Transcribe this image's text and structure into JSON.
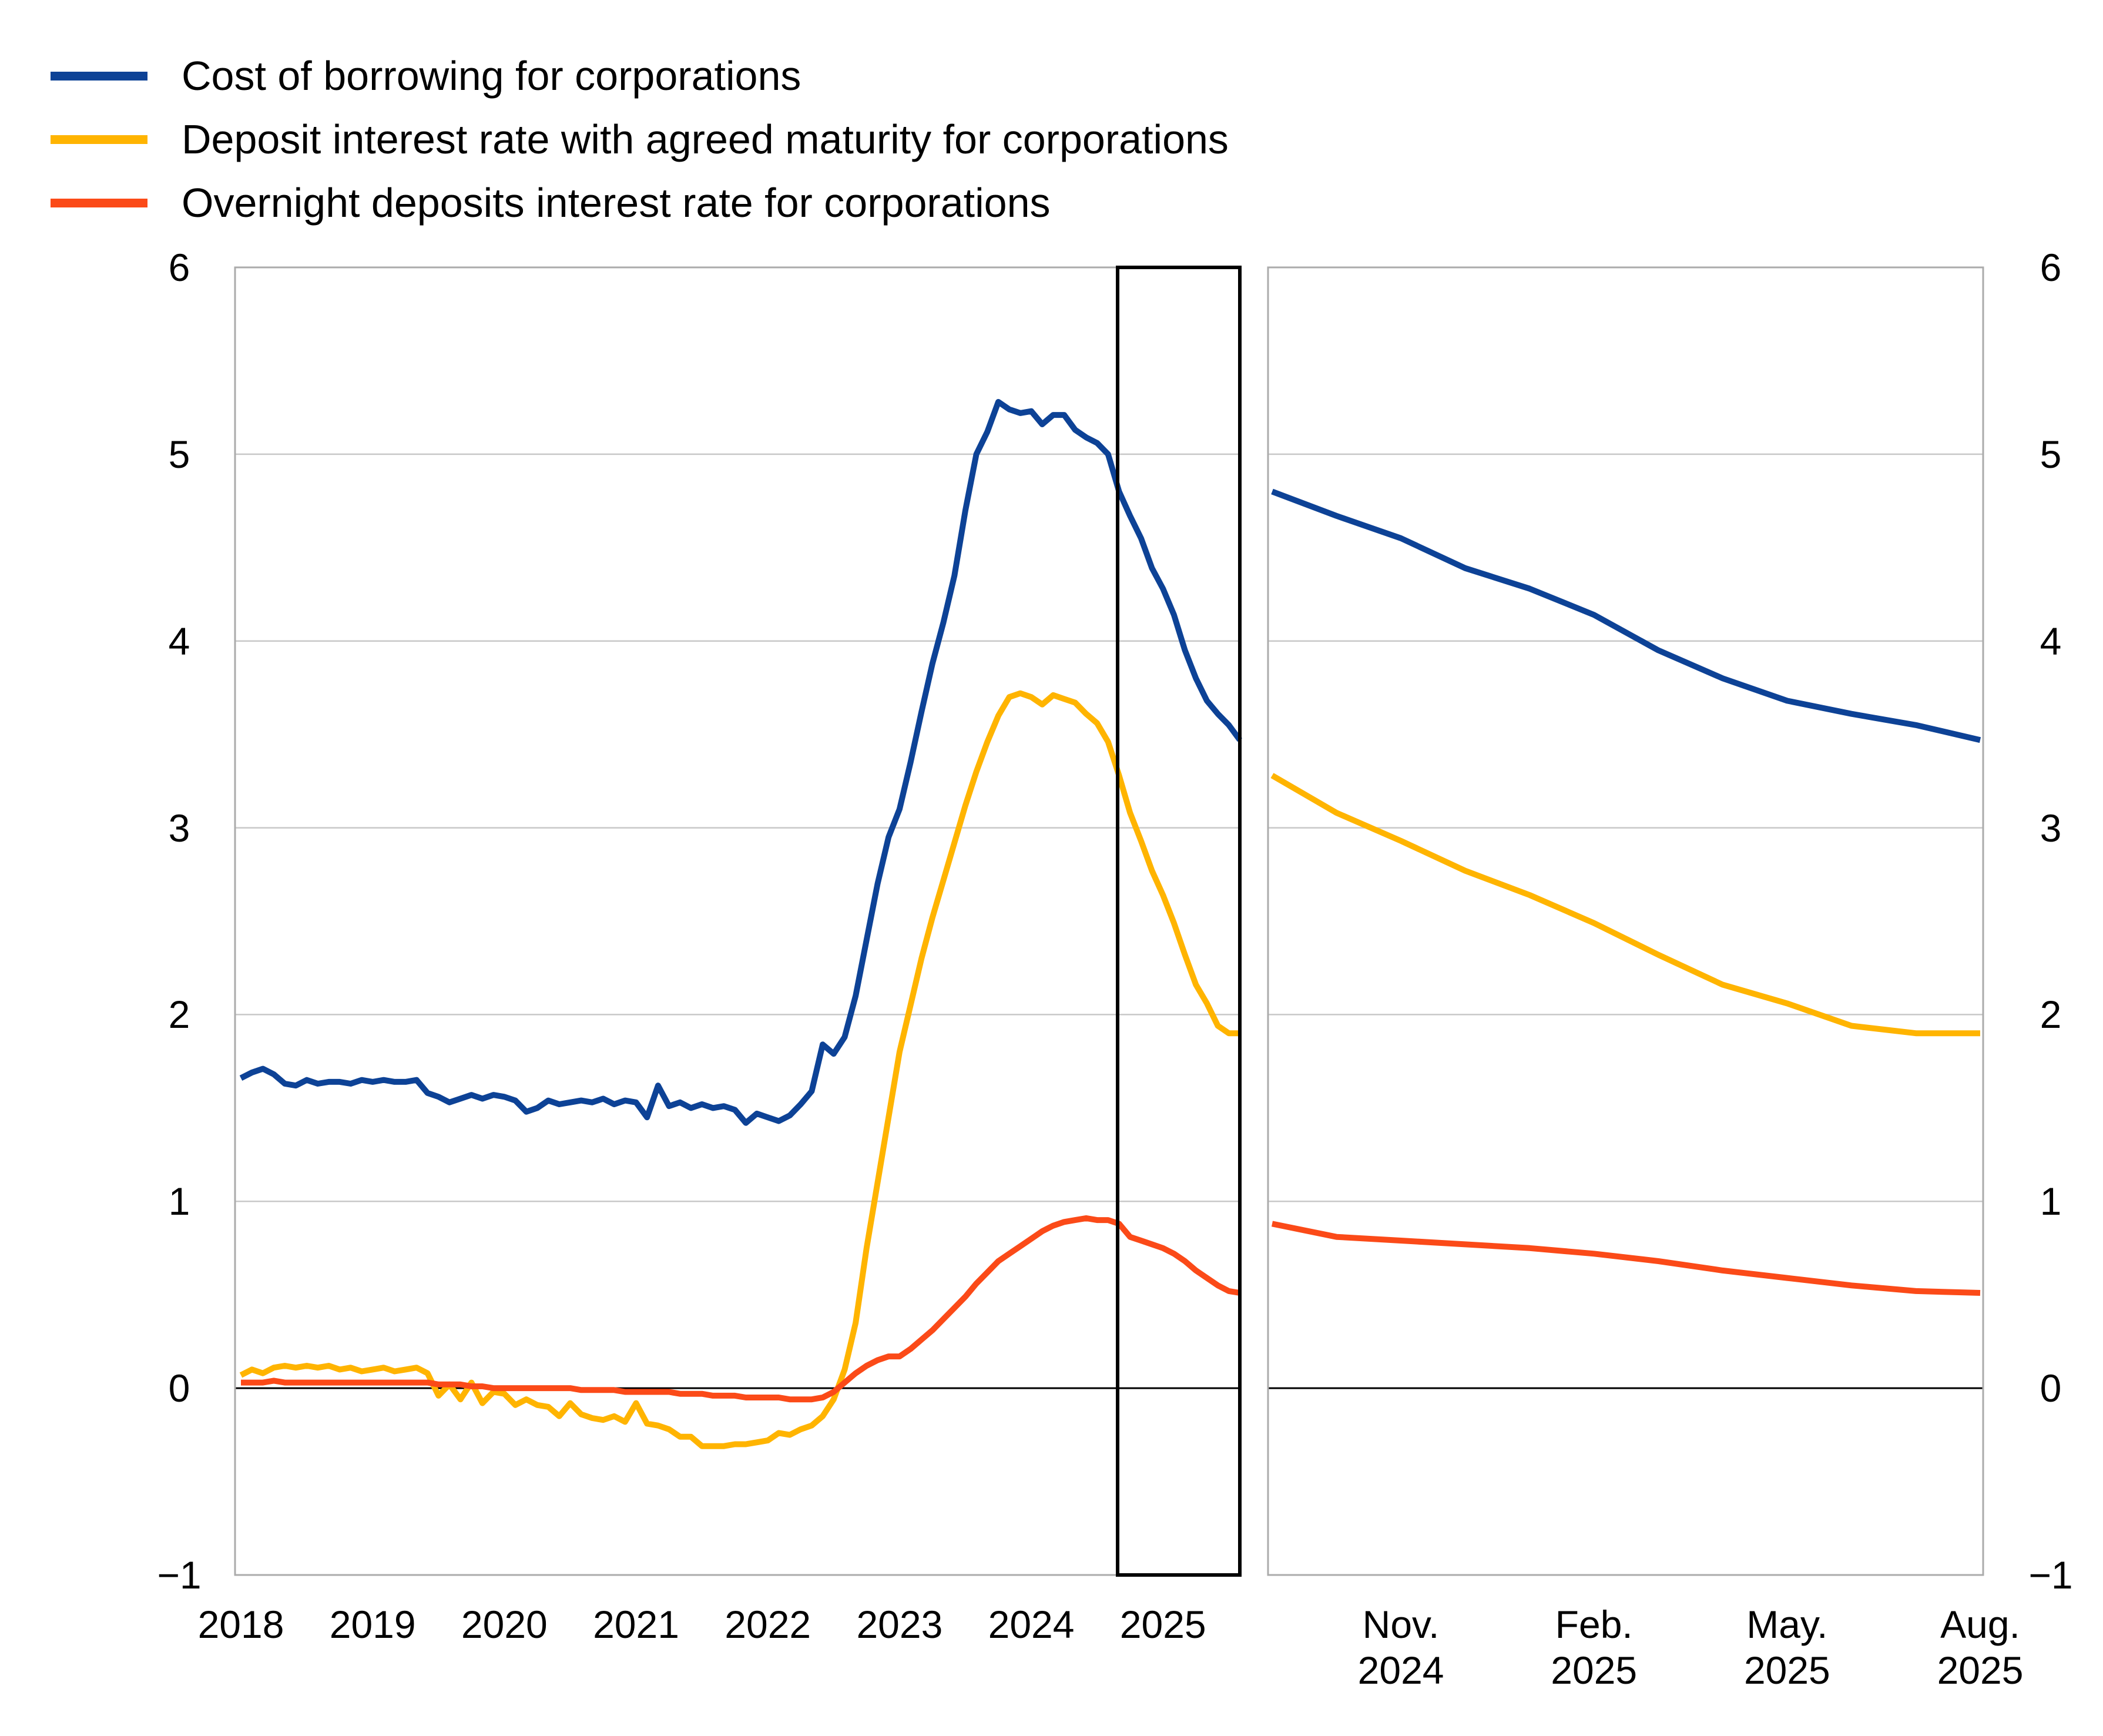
{
  "colors": {
    "series": [
      "#0d4296",
      "#ffb400",
      "#fb4a18"
    ],
    "grid": "#c8c8c8",
    "panel_border": "#ababab",
    "zero_line": "#000000",
    "highlight_box": "#000000",
    "text": "#000000",
    "background": "#ffffff"
  },
  "chart_data": [
    {
      "type": "line",
      "panel": "left",
      "title": "",
      "xlabel": "",
      "ylabel": "",
      "x_unit": "month",
      "x_start": "2018-01",
      "x_end": "2025-08",
      "x_tick_labels": [
        "2018",
        "2019",
        "2020",
        "2021",
        "2022",
        "2023",
        "2024",
        "2025"
      ],
      "ylim": [
        -1,
        6
      ],
      "y_tick_values": [
        6,
        5,
        4,
        3,
        2,
        1,
        0,
        -1
      ],
      "y_tick_labels": [
        "6",
        "5",
        "4",
        "3",
        "2",
        "1",
        "0",
        "−1"
      ],
      "grid": "horizontal",
      "legend_position": "top-left",
      "highlight_window": {
        "from": "2024-09",
        "to": "2025-08"
      },
      "series": [
        {
          "name": "Cost of borrowing for corporations",
          "values": [
            1.66,
            1.69,
            1.71,
            1.68,
            1.63,
            1.62,
            1.65,
            1.63,
            1.64,
            1.64,
            1.63,
            1.65,
            1.64,
            1.65,
            1.64,
            1.64,
            1.65,
            1.58,
            1.56,
            1.53,
            1.55,
            1.57,
            1.55,
            1.57,
            1.56,
            1.54,
            1.48,
            1.5,
            1.54,
            1.52,
            1.53,
            1.54,
            1.53,
            1.55,
            1.52,
            1.54,
            1.53,
            1.45,
            1.62,
            1.51,
            1.53,
            1.5,
            1.52,
            1.5,
            1.51,
            1.49,
            1.42,
            1.47,
            1.45,
            1.43,
            1.46,
            1.52,
            1.59,
            1.84,
            1.79,
            1.88,
            2.1,
            2.4,
            2.7,
            2.95,
            3.1,
            3.35,
            3.62,
            3.88,
            4.1,
            4.35,
            4.7,
            5.0,
            5.12,
            5.28,
            5.24,
            5.22,
            5.23,
            5.16,
            5.21,
            5.21,
            5.13,
            5.09,
            5.06,
            5.0,
            4.8,
            4.67,
            4.55,
            4.39,
            4.28,
            4.14,
            3.95,
            3.8,
            3.68,
            3.61,
            3.55,
            3.47
          ]
        },
        {
          "name": "Deposit interest rate with agreed maturity for corporations",
          "values": [
            0.07,
            0.1,
            0.08,
            0.11,
            0.12,
            0.11,
            0.12,
            0.11,
            0.12,
            0.1,
            0.11,
            0.09,
            0.1,
            0.11,
            0.09,
            0.1,
            0.11,
            0.08,
            -0.04,
            0.02,
            -0.06,
            0.03,
            -0.08,
            -0.02,
            -0.03,
            -0.09,
            -0.06,
            -0.09,
            -0.1,
            -0.15,
            -0.08,
            -0.14,
            -0.16,
            -0.17,
            -0.15,
            -0.18,
            -0.08,
            -0.19,
            -0.2,
            -0.22,
            -0.26,
            -0.26,
            -0.31,
            -0.31,
            -0.31,
            -0.3,
            -0.3,
            -0.29,
            -0.28,
            -0.24,
            -0.25,
            -0.22,
            -0.2,
            -0.15,
            -0.06,
            0.1,
            0.35,
            0.75,
            1.1,
            1.45,
            1.8,
            2.05,
            2.3,
            2.52,
            2.72,
            2.92,
            3.12,
            3.3,
            3.46,
            3.6,
            3.7,
            3.72,
            3.7,
            3.66,
            3.71,
            3.69,
            3.67,
            3.61,
            3.56,
            3.46,
            3.28,
            3.08,
            2.93,
            2.77,
            2.64,
            2.49,
            2.32,
            2.16,
            2.06,
            1.94,
            1.9,
            1.9
          ]
        },
        {
          "name": "Overnight deposits interest rate for corporations",
          "values": [
            0.03,
            0.03,
            0.03,
            0.04,
            0.03,
            0.03,
            0.03,
            0.03,
            0.03,
            0.03,
            0.03,
            0.03,
            0.03,
            0.03,
            0.03,
            0.03,
            0.03,
            0.03,
            0.02,
            0.02,
            0.02,
            0.01,
            0.01,
            0.0,
            0.0,
            0.0,
            0.0,
            0.0,
            0.0,
            0.0,
            0.0,
            -0.01,
            -0.01,
            -0.01,
            -0.01,
            -0.02,
            -0.02,
            -0.02,
            -0.02,
            -0.02,
            -0.03,
            -0.03,
            -0.03,
            -0.04,
            -0.04,
            -0.04,
            -0.05,
            -0.05,
            -0.05,
            -0.05,
            -0.06,
            -0.06,
            -0.06,
            -0.05,
            -0.02,
            0.03,
            0.08,
            0.12,
            0.15,
            0.17,
            0.17,
            0.21,
            0.26,
            0.31,
            0.37,
            0.43,
            0.49,
            0.56,
            0.62,
            0.68,
            0.72,
            0.76,
            0.8,
            0.84,
            0.87,
            0.89,
            0.9,
            0.91,
            0.9,
            0.9,
            0.88,
            0.81,
            0.79,
            0.77,
            0.75,
            0.72,
            0.68,
            0.63,
            0.59,
            0.55,
            0.52,
            0.51
          ]
        }
      ]
    },
    {
      "type": "line",
      "panel": "right",
      "title": "",
      "xlabel": "",
      "ylabel": "",
      "x_unit": "month",
      "x_start": "2024-09",
      "x_end": "2025-08",
      "x_tick_indices": [
        2,
        5,
        8,
        11
      ],
      "x_tick_labels": [
        [
          "Nov.",
          "2024"
        ],
        [
          "Feb.",
          "2025"
        ],
        [
          "May.",
          "2025"
        ],
        [
          "Aug.",
          "2025"
        ]
      ],
      "ylim": [
        -1,
        6
      ],
      "y_tick_values": [
        6,
        5,
        4,
        3,
        2,
        1,
        0,
        -1
      ],
      "y_tick_labels": [
        "6",
        "5",
        "4",
        "3",
        "2",
        "1",
        "0",
        "−1"
      ],
      "grid": "horizontal",
      "series": [
        {
          "name": "Cost of borrowing for corporations",
          "values": [
            4.8,
            4.67,
            4.55,
            4.39,
            4.28,
            4.14,
            3.95,
            3.8,
            3.68,
            3.61,
            3.55,
            3.47
          ]
        },
        {
          "name": "Deposit interest rate with agreed maturity for corporations",
          "values": [
            3.28,
            3.08,
            2.93,
            2.77,
            2.64,
            2.49,
            2.32,
            2.16,
            2.06,
            1.94,
            1.9,
            1.9
          ]
        },
        {
          "name": "Overnight deposits interest rate for corporations",
          "values": [
            0.88,
            0.81,
            0.79,
            0.77,
            0.75,
            0.72,
            0.68,
            0.63,
            0.59,
            0.55,
            0.52,
            0.51
          ]
        }
      ]
    }
  ]
}
